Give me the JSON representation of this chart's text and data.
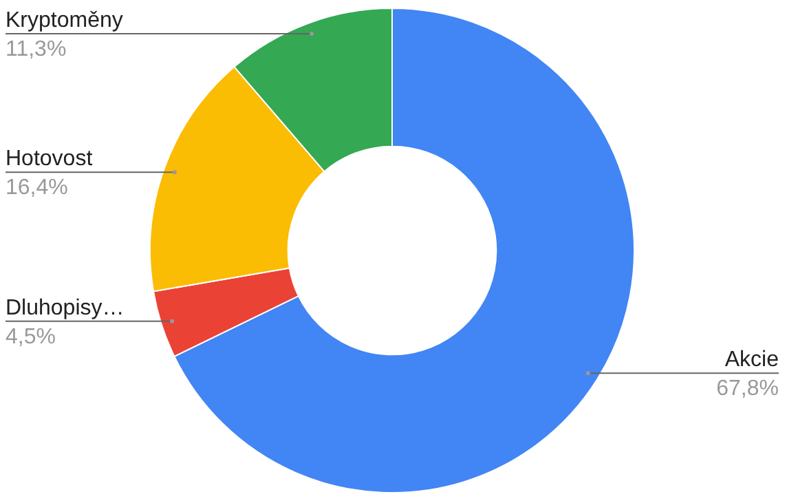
{
  "chart_data": {
    "type": "donut",
    "categories": [
      "Akcie",
      "Dluhopisy…",
      "Hotovost",
      "Kryptoměny"
    ],
    "values": [
      67.8,
      4.5,
      16.4,
      11.3
    ],
    "colors": [
      "#4285f4",
      "#ea4335",
      "#fbbc04",
      "#34a853"
    ],
    "value_labels": [
      "67,8%",
      "4,5%",
      "16,4%",
      "11,3%"
    ],
    "legend": false
  }
}
